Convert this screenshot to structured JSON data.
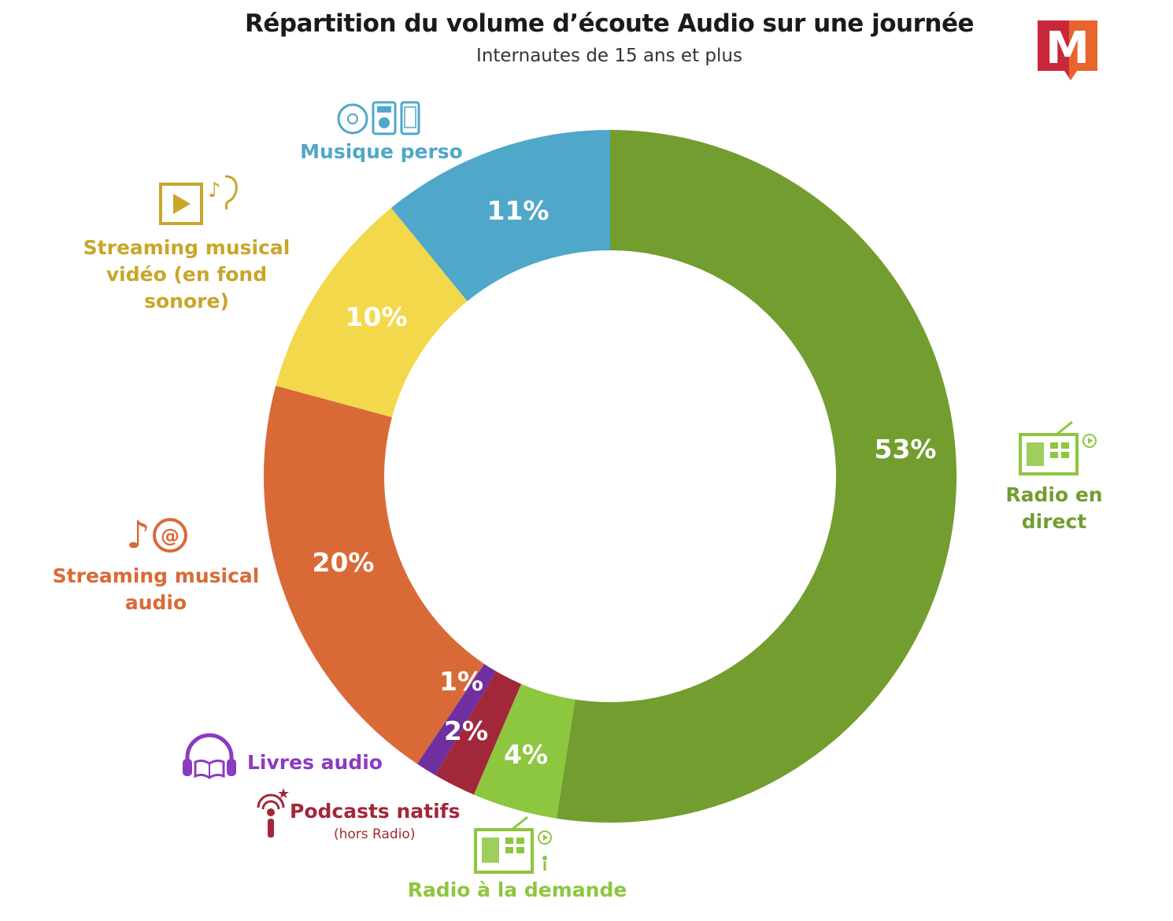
{
  "title": "Répartition du volume d’écoute Audio sur une journée",
  "subtitle": "Internautes de 15 ans et plus",
  "chart_data": {
    "type": "pie",
    "title": "Répartition du volume d’écoute Audio sur une journée",
    "subtitle": "Internautes de 15 ans et plus",
    "unit": "%",
    "donut": true,
    "slices": [
      {
        "label": "Radio en direct",
        "value": 53,
        "display": "53%",
        "color": "#739d2f"
      },
      {
        "label": "Radio à la demande",
        "value": 4,
        "display": "4%",
        "color": "#8dc63f"
      },
      {
        "label": "Podcasts natifs",
        "note": "(hors Radio)",
        "value": 2,
        "display": "2%",
        "color": "#a3273a"
      },
      {
        "label": "Livres audio",
        "value": 1,
        "display": "1%",
        "color": "#6f2f9f"
      },
      {
        "label": "Streaming musical audio",
        "value": 20,
        "display": "20%",
        "color": "#d96a37"
      },
      {
        "label": "Streaming musical vidéo (en fond sonore)",
        "value": 10,
        "display": "10%",
        "color": "#f4d84b"
      },
      {
        "label": "Musique perso",
        "value": 11,
        "display": "11%",
        "color": "#4fa7c9"
      }
    ]
  },
  "labels": {
    "radio_direct": "Radio en direct",
    "radio_demande": "Radio à la demande",
    "podcasts": "Podcasts natifs",
    "podcasts_note": "(hors Radio)",
    "livres": "Livres audio",
    "streaming_audio": "Streaming musical audio",
    "streaming_video": "Streaming musical vidéo (en fond sonore)",
    "musique_perso": "Musique perso"
  },
  "colors": {
    "radio_direct_text": "#739d2f",
    "radio_demande_text": "#8dc63f",
    "podcasts_text": "#a3273a",
    "livres_text": "#8b3bbf",
    "streaming_audio_text": "#d96a37",
    "streaming_video_text": "#c8a62a",
    "musique_perso_text": "#4fa7c9",
    "logo_red": "#c8283a",
    "logo_orange": "#e8652b"
  },
  "logo": {
    "letter": "M"
  }
}
